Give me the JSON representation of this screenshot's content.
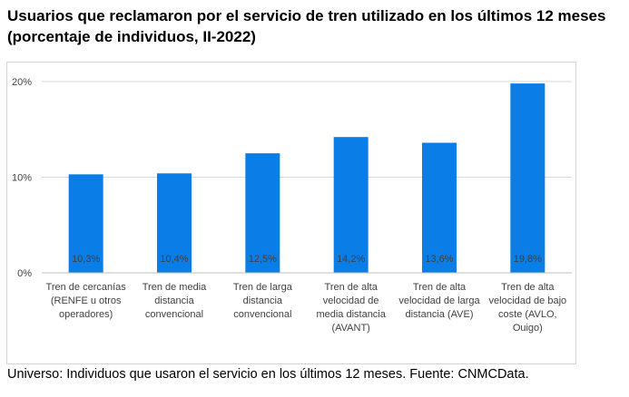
{
  "title": "Usuarios que reclamaron por el servicio de tren utilizado en los últimos 12 meses (porcentaje de individuos, II-2022)",
  "footnote": "Universo: Individuos que usaron el servicio en los últimos 12 meses. Fuente: CNMCData.",
  "colors": {
    "bar": "#0a7ee6",
    "grid": "#d9d9d9",
    "axis": "#bfbfbf",
    "text": "#404040",
    "datalabel": "#404040"
  },
  "chart_data": {
    "type": "bar",
    "title": "Usuarios que reclamaron por el servicio de tren utilizado en los últimos 12 meses (porcentaje de individuos, II-2022)",
    "categories": [
      [
        "Tren de cercanías",
        "(RENFE u otros",
        "operadores)"
      ],
      [
        "Tren de media",
        "distancia",
        "convencional"
      ],
      [
        "Tren de larga",
        "distancia",
        "convencional"
      ],
      [
        "Tren de alta",
        "velocidad de",
        "media distancia",
        "(AVANT)"
      ],
      [
        "Tren de alta",
        "velocidad de larga",
        "distancia (AVE)"
      ],
      [
        "Tren de alta",
        "velocidad de bajo",
        "coste (AVLO,",
        "Ouigo)"
      ]
    ],
    "values": [
      10.3,
      10.4,
      12.5,
      14.2,
      13.6,
      19.8
    ],
    "data_labels": [
      "10,3%",
      "10,4%",
      "12,5%",
      "14,2%",
      "13,6%",
      "19,8%"
    ],
    "yticks": [
      0,
      10,
      20
    ],
    "ytick_labels": [
      "0%",
      "10%",
      "20%"
    ],
    "ylim": [
      0,
      20
    ],
    "xlabel": "",
    "ylabel": "",
    "grid": true,
    "legend": "none"
  }
}
